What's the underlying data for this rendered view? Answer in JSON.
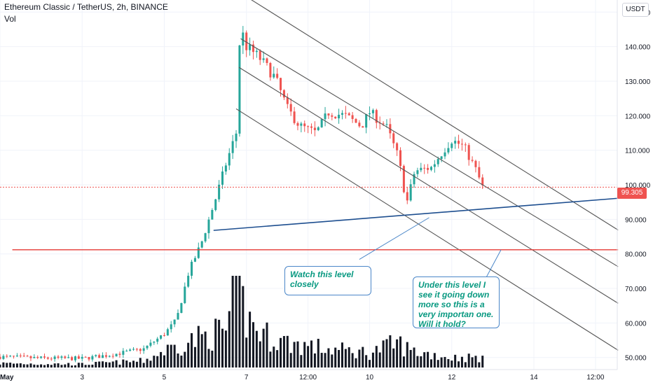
{
  "header": {
    "title": "Ethereum Classic / TetherUS, 2h, BINANCE",
    "volume_label": "Vol",
    "currency": "USDT"
  },
  "last_price": {
    "label": "99.305",
    "value": 99.305,
    "color": "#ef5350"
  },
  "annotations": [
    {
      "text": "Watch this level closely"
    },
    {
      "text": "Under this level I see it going down more so this is a very importan one. Will it hold?"
    }
  ],
  "colors": {
    "up": "#26a69a",
    "down": "#ef5350",
    "channel": "#555555",
    "trendline": "#1d4e8f",
    "support": "#e53935",
    "volume": "#131722"
  },
  "chart_data": {
    "type": "candlestick",
    "symbol": "ETCUSDT",
    "exchange": "BINANCE",
    "interval": "2h",
    "grid": true,
    "y_axis": {
      "position": "right",
      "ticks": [
        50,
        60,
        70,
        80,
        90,
        100,
        110,
        120,
        130,
        140,
        150
      ],
      "tick_labels": [
        "50.000",
        "60.000",
        "70.000",
        "80.000",
        "90.000",
        "100.000",
        "110.000",
        "120.000",
        "130.000",
        "140.000",
        "150.000"
      ],
      "range": [
        46.5,
        153.5
      ]
    },
    "x_axis": {
      "tick_labels": [
        "May",
        "3",
        "5",
        "7",
        "12:00",
        "10",
        "12",
        "14",
        "12:00"
      ],
      "tick_days": [
        1,
        3,
        5,
        7,
        8.5,
        10,
        12,
        14,
        15.5
      ],
      "range": [
        1,
        16.03
      ]
    },
    "price_path": [
      [
        1.0,
        50.2
      ],
      [
        2.0,
        49.8
      ],
      [
        3.0,
        49.7
      ],
      [
        3.7,
        50.8
      ],
      [
        4.5,
        52.5
      ],
      [
        5.0,
        56.8
      ],
      [
        5.3,
        61.0
      ],
      [
        5.6,
        75.0
      ],
      [
        5.9,
        83.0
      ],
      [
        6.25,
        96.0
      ],
      [
        6.5,
        106.0
      ],
      [
        6.75,
        115.0
      ],
      [
        6.85,
        146.0
      ],
      [
        7.0,
        140.0
      ],
      [
        7.3,
        137.0
      ],
      [
        7.7,
        131.0
      ],
      [
        8.0,
        122.0
      ],
      [
        8.3,
        117.0
      ],
      [
        8.7,
        115.0
      ],
      [
        9.0,
        121.0
      ],
      [
        9.4,
        120.0
      ],
      [
        9.8,
        117.0
      ],
      [
        10.0,
        121.0
      ],
      [
        10.4,
        117.0
      ],
      [
        10.7,
        108.0
      ],
      [
        10.9,
        94.5
      ],
      [
        11.1,
        104.0
      ],
      [
        11.5,
        105.0
      ],
      [
        11.8,
        110.0
      ],
      [
        12.0,
        113.0
      ],
      [
        12.3,
        111.0
      ],
      [
        12.6,
        104.0
      ],
      [
        12.75,
        99.3
      ]
    ],
    "volume_path": [
      [
        1.0,
        0.05
      ],
      [
        3.0,
        0.04
      ],
      [
        4.5,
        0.08
      ],
      [
        5.0,
        0.2
      ],
      [
        5.5,
        0.3
      ],
      [
        6.0,
        0.38
      ],
      [
        6.5,
        0.45
      ],
      [
        6.8,
        1.0
      ],
      [
        7.0,
        0.6
      ],
      [
        7.4,
        0.4
      ],
      [
        8.0,
        0.3
      ],
      [
        9.0,
        0.22
      ],
      [
        10.0,
        0.18
      ],
      [
        10.7,
        0.3
      ],
      [
        11.0,
        0.2
      ],
      [
        12.0,
        0.12
      ],
      [
        12.75,
        0.12
      ]
    ],
    "lines": [
      {
        "name": "channel",
        "from": [
          6.86,
          155.5
        ],
        "to": [
          16.05,
          86.9
        ]
      },
      {
        "name": "channel",
        "from": [
          6.86,
          142.3
        ],
        "to": [
          16.05,
          76.3
        ]
      },
      {
        "name": "channel",
        "from": [
          6.82,
          134.0
        ],
        "to": [
          16.05,
          65.7
        ]
      },
      {
        "name": "channel",
        "from": [
          6.75,
          122.0
        ],
        "to": [
          16.05,
          52.1
        ]
      },
      {
        "name": "trendline",
        "from": [
          6.2,
          86.8
        ],
        "to": [
          16.05,
          96.1
        ]
      },
      {
        "name": "support",
        "from": [
          1.3,
          81.2
        ],
        "to": [
          16.05,
          81.2
        ]
      },
      {
        "name": "pointer",
        "from": [
          9.75,
          78.4
        ],
        "to": [
          11.45,
          90.5
        ]
      },
      {
        "name": "pointer",
        "from": [
          12.2,
          59.0
        ],
        "to": [
          13.2,
          81.2
        ]
      }
    ]
  }
}
